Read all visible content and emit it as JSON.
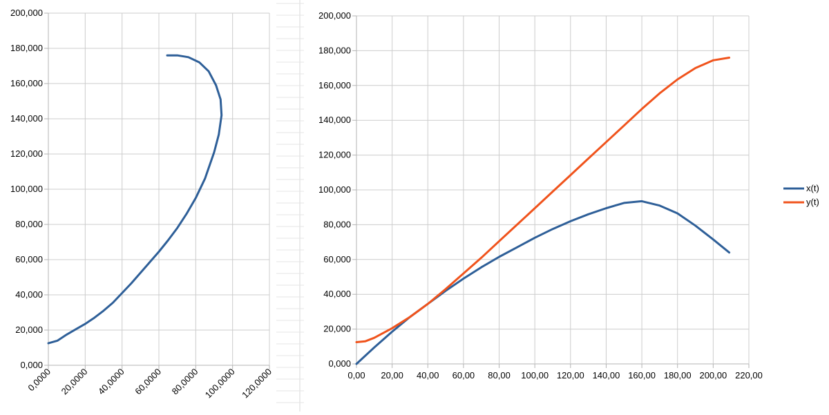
{
  "chart_data": [
    {
      "type": "line",
      "title": "",
      "xlabel": "",
      "ylabel": "",
      "xlim": [
        0,
        120
      ],
      "ylim": [
        0,
        200
      ],
      "grid": true,
      "x_ticks": [
        "0,0000",
        "20,0000",
        "40,0000",
        "60,0000",
        "80,0000",
        "100,0000",
        "120,0000"
      ],
      "y_ticks": [
        "0,000",
        "20,000",
        "40,000",
        "60,000",
        "80,000",
        "100,000",
        "120,000",
        "140,000",
        "160,000",
        "180,000",
        "200,000"
      ],
      "series": [
        {
          "color": "#2E5F98",
          "points": [
            [
              0,
              12.5
            ],
            [
              5,
              14
            ],
            [
              10,
              17.5
            ],
            [
              15,
              20.5
            ],
            [
              20,
              23.5
            ],
            [
              25,
              27
            ],
            [
              30,
              31
            ],
            [
              35,
              35.5
            ],
            [
              40,
              41
            ],
            [
              45,
              46.5
            ],
            [
              50,
              52.5
            ],
            [
              55,
              58.5
            ],
            [
              60,
              64.5
            ],
            [
              65,
              71
            ],
            [
              70,
              78
            ],
            [
              75,
              86
            ],
            [
              80,
              95
            ],
            [
              85,
              106
            ],
            [
              90,
              121
            ],
            [
              92.5,
              131
            ],
            [
              94,
              142
            ],
            [
              93.5,
              151
            ],
            [
              91,
              159
            ],
            [
              87,
              167
            ],
            [
              82,
              172
            ],
            [
              76,
              175
            ],
            [
              70,
              176
            ],
            [
              64.5,
              176
            ]
          ]
        }
      ]
    },
    {
      "type": "line",
      "title": "",
      "xlabel": "",
      "ylabel": "",
      "xlim": [
        0,
        220
      ],
      "ylim": [
        0,
        200
      ],
      "grid": true,
      "legend": "right",
      "x_ticks": [
        "0,00",
        "20,00",
        "40,00",
        "60,00",
        "80,00",
        "100,00",
        "120,00",
        "140,00",
        "160,00",
        "180,00",
        "200,00",
        "220,00"
      ],
      "y_ticks": [
        "0,000",
        "20,000",
        "40,000",
        "60,000",
        "80,000",
        "100,000",
        "120,000",
        "140,000",
        "160,000",
        "180,000",
        "200,000"
      ],
      "series": [
        {
          "name": "x(t)",
          "color": "#2E5F98",
          "points": [
            [
              0,
              0
            ],
            [
              10,
              9.5
            ],
            [
              20,
              18.5
            ],
            [
              30,
              27
            ],
            [
              40,
              34.5
            ],
            [
              50,
              42
            ],
            [
              60,
              49
            ],
            [
              70,
              55.5
            ],
            [
              80,
              61.5
            ],
            [
              90,
              67
            ],
            [
              100,
              72.5
            ],
            [
              110,
              77.5
            ],
            [
              120,
              82
            ],
            [
              130,
              86
            ],
            [
              140,
              89.5
            ],
            [
              150,
              92.5
            ],
            [
              160,
              93.5
            ],
            [
              170,
              91
            ],
            [
              180,
              86.5
            ],
            [
              190,
              79.5
            ],
            [
              200,
              71.5
            ],
            [
              209,
              64
            ]
          ]
        },
        {
          "name": "y(t)",
          "color": "#F0531C",
          "points": [
            [
              0,
              12.5
            ],
            [
              5,
              13
            ],
            [
              10,
              15
            ],
            [
              20,
              20.5
            ],
            [
              30,
              27
            ],
            [
              40,
              34.5
            ],
            [
              50,
              43
            ],
            [
              60,
              52
            ],
            [
              70,
              61
            ],
            [
              80,
              70.5
            ],
            [
              90,
              80
            ],
            [
              100,
              89.5
            ],
            [
              110,
              99
            ],
            [
              120,
              108.5
            ],
            [
              130,
              118
            ],
            [
              140,
              127.5
            ],
            [
              150,
              137
            ],
            [
              160,
              146.5
            ],
            [
              170,
              155.5
            ],
            [
              180,
              163.5
            ],
            [
              190,
              170
            ],
            [
              200,
              174.5
            ],
            [
              209,
              176
            ]
          ]
        }
      ]
    }
  ]
}
